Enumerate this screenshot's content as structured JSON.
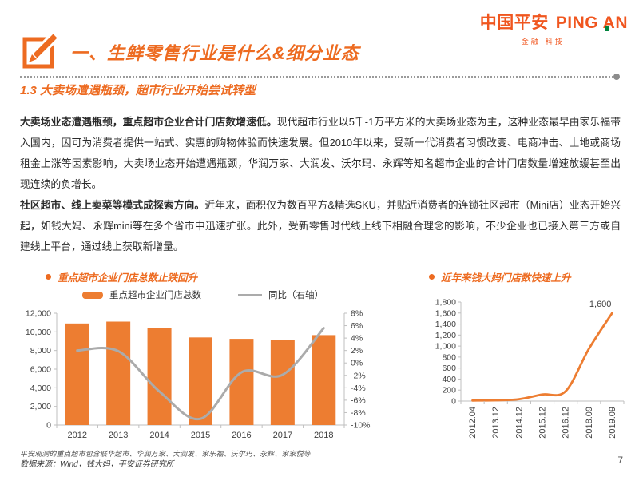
{
  "colors": {
    "brand_orange": "#F0561F",
    "accent_orange": "#ED6B21",
    "bar_orange": "#ED7D31",
    "line_gray": "#ABABAB",
    "line_orange": "#ED7D31",
    "logo_green": "#00843D",
    "axis_gray": "#BFBFBF"
  },
  "logo": {
    "brand_cn": "中国平安",
    "brand_en": "PING AN",
    "tagline": "金融·科技"
  },
  "header": {
    "section_title": "一、生鲜零售行业是什么&细分业态"
  },
  "subtitle": "1.3 大卖场遭遇瓶颈，超市行业开始尝试转型",
  "paragraphs": [
    {
      "lead": "大卖场业态遭遇瓶颈，重点超市企业合计门店数增速低。",
      "body": "现代超市行业以5千-1万平方米的大卖场业态为主，这种业态最早由家乐福带入国内，因可为消费者提供一站式、实惠的购物体验而快速发展。但2010年以来，受新一代消费者习惯改变、电商冲击、土地或商场租金上涨等因素影响，大卖场业态开始遭遇瓶颈，华润万家、大润发、沃尔玛、永辉等知名超市企业的合计门店数量增速放缓甚至出现连续的负增长。"
    },
    {
      "lead": "社区超市、线上卖菜等模式成探索方向。",
      "body": "近年来，面积仅为数百平方&精选SKU，并贴近消费者的连锁社区超市（Mini店）业态开始兴起，如钱大妈、永辉mini等在多个省市中迅速扩张。此外，受新零售时代线上线下相融合理念的影响，不少企业也已接入第三方或自建线上平台，通过线上获取新增量。"
    }
  ],
  "chart_data": [
    {
      "type": "bar",
      "title": "重点超市企业门店总数止跌回升",
      "categories": [
        "2012",
        "2013",
        "2014",
        "2015",
        "2016",
        "2017",
        "2018"
      ],
      "series": [
        {
          "name": "重点超市企业门店总数",
          "type": "bar",
          "axis": "left",
          "values": [
            10900,
            11100,
            10400,
            9400,
            9250,
            9150,
            9650
          ]
        },
        {
          "name": "同比（右轴）",
          "type": "line",
          "axis": "right",
          "values": [
            2.0,
            1.9,
            -4.6,
            -9.0,
            -1.5,
            -1.9,
            5.6
          ]
        }
      ],
      "axes": {
        "left": {
          "min": 0,
          "max": 12000,
          "step": 2000
        },
        "right": {
          "min": -10,
          "max": 8,
          "step": 2,
          "unit": "%"
        }
      },
      "legend_position": "top",
      "grid": false
    },
    {
      "type": "line",
      "title": "近年来钱大妈门店数快速上升",
      "categories": [
        "2012.04",
        "2013.12",
        "2014.12",
        "2015.12",
        "2016.12",
        "2018.09",
        "2019.09"
      ],
      "values": [
        10,
        15,
        35,
        120,
        180,
        950,
        1600
      ],
      "axes": {
        "left": {
          "min": 0,
          "max": 1800,
          "step": 200
        }
      },
      "end_label": "1,600",
      "grid": false
    }
  ],
  "footnotes": {
    "left_chart_note": "平安观测的重点超市包含联华超市、华润万家、大润发、家乐福、沃尔玛、永辉、家家悦等",
    "source": "数据来源：Wind，钱大妈，平安证券研究所"
  },
  "page": {
    "number": "7"
  }
}
